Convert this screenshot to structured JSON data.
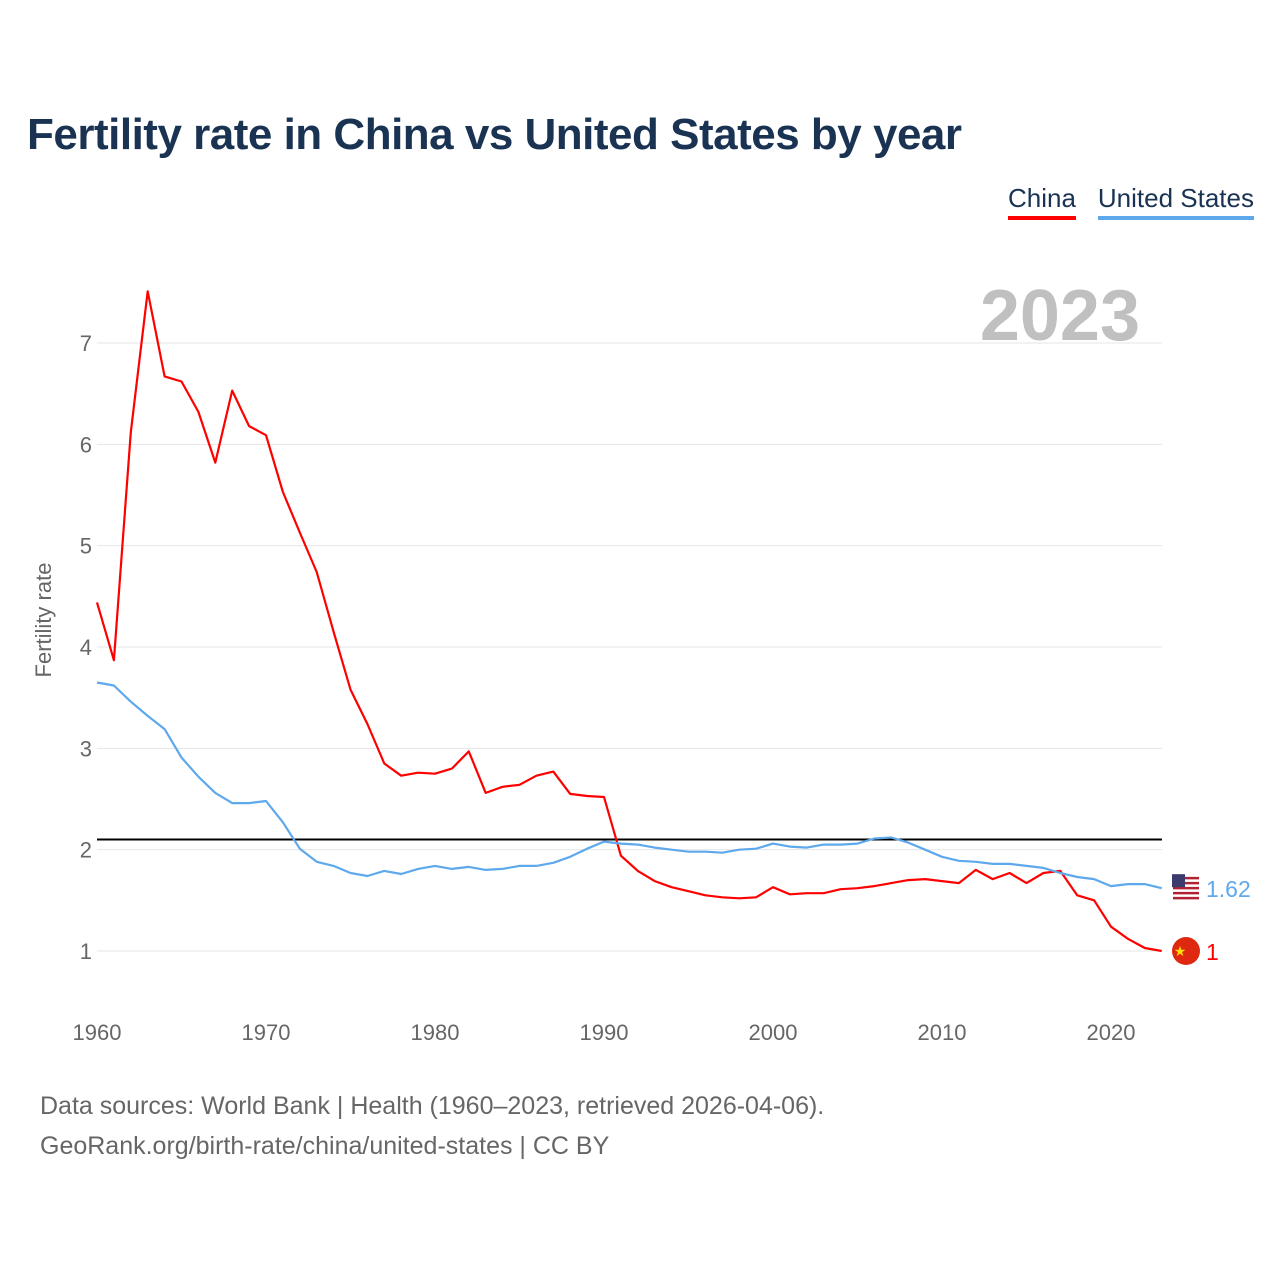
{
  "chart_data": {
    "type": "line",
    "title": "Fertility rate in China vs United States by year",
    "xlabel": "",
    "ylabel": "Fertility rate",
    "xlim": [
      1960,
      2023
    ],
    "ylim": [
      0.5,
      7.5
    ],
    "x_ticks": [
      "1960",
      "1970",
      "1980",
      "1990",
      "2000",
      "2010",
      "2020"
    ],
    "y_ticks": [
      "1",
      "2",
      "3",
      "4",
      "5",
      "6",
      "7"
    ],
    "grid": true,
    "legend": "top-right",
    "year_label": "2023",
    "reference_line": 2.1,
    "x": [
      1960,
      1961,
      1962,
      1963,
      1964,
      1965,
      1966,
      1967,
      1968,
      1969,
      1970,
      1971,
      1972,
      1973,
      1974,
      1975,
      1976,
      1977,
      1978,
      1979,
      1980,
      1981,
      1982,
      1983,
      1984,
      1985,
      1986,
      1987,
      1988,
      1989,
      1990,
      1991,
      1992,
      1993,
      1994,
      1995,
      1996,
      1997,
      1998,
      1999,
      2000,
      2001,
      2002,
      2003,
      2004,
      2005,
      2006,
      2007,
      2008,
      2009,
      2010,
      2011,
      2012,
      2013,
      2014,
      2015,
      2016,
      2017,
      2018,
      2019,
      2020,
      2021,
      2022,
      2023
    ],
    "series": [
      {
        "name": "China",
        "color": "#ff0000",
        "end_label": "1",
        "values": [
          4.44,
          3.87,
          6.12,
          7.51,
          6.67,
          6.62,
          6.32,
          5.82,
          6.53,
          6.18,
          6.09,
          5.53,
          5.13,
          4.74,
          4.15,
          3.58,
          3.24,
          2.85,
          2.73,
          2.76,
          2.75,
          2.8,
          2.97,
          2.56,
          2.62,
          2.64,
          2.73,
          2.77,
          2.55,
          2.53,
          2.52,
          1.94,
          1.79,
          1.69,
          1.63,
          1.59,
          1.55,
          1.53,
          1.52,
          1.53,
          1.63,
          1.56,
          1.57,
          1.57,
          1.61,
          1.62,
          1.64,
          1.67,
          1.7,
          1.71,
          1.69,
          1.67,
          1.8,
          1.71,
          1.77,
          1.67,
          1.77,
          1.79,
          1.55,
          1.5,
          1.24,
          1.12,
          1.03,
          1.0
        ]
      },
      {
        "name": "United States",
        "color": "#5ea8ec",
        "end_label": "1.62",
        "values": [
          3.65,
          3.62,
          3.46,
          3.32,
          3.19,
          2.91,
          2.72,
          2.56,
          2.46,
          2.46,
          2.48,
          2.27,
          2.01,
          1.88,
          1.84,
          1.77,
          1.74,
          1.79,
          1.76,
          1.81,
          1.84,
          1.81,
          1.83,
          1.8,
          1.81,
          1.84,
          1.84,
          1.87,
          1.93,
          2.01,
          2.08,
          2.06,
          2.05,
          2.02,
          2.0,
          1.98,
          1.98,
          1.97,
          2.0,
          2.01,
          2.06,
          2.03,
          2.02,
          2.05,
          2.05,
          2.06,
          2.11,
          2.12,
          2.07,
          2.0,
          1.93,
          1.89,
          1.88,
          1.86,
          1.86,
          1.84,
          1.82,
          1.77,
          1.73,
          1.71,
          1.64,
          1.66,
          1.66,
          1.62
        ]
      }
    ]
  },
  "footer": {
    "line1": "Data sources: World Bank | Health (1960–2023, retrieved 2026-04-06).",
    "line2": "GeoRank.org/birth-rate/china/united-states | CC BY"
  }
}
